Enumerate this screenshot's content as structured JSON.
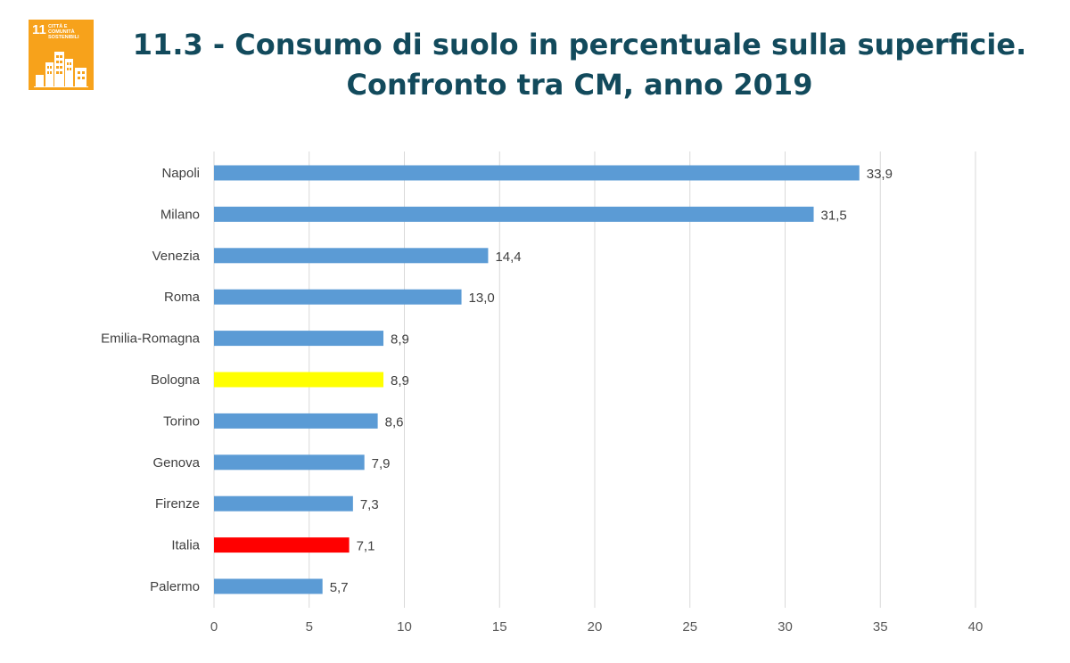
{
  "header": {
    "title_line1": "11.3 - Consumo di suolo in percentuale sulla superficie.",
    "title_line2": "Confronto tra CM, anno 2019",
    "logo": {
      "number": "11",
      "text": "Città e comunità sostenibili",
      "color": "#f7a21b",
      "icon": "city-buildings-icon"
    }
  },
  "chart_data": {
    "type": "bar",
    "orientation": "horizontal",
    "title": "11.3 - Consumo di suolo in percentuale sulla superficie. Confronto tra CM, anno 2019",
    "categories": [
      "Napoli",
      "Milano",
      "Venezia",
      "Roma",
      "Emilia-Romagna",
      "Bologna",
      "Torino",
      "Genova",
      "Firenze",
      "Italia",
      "Palermo"
    ],
    "values": [
      33.9,
      31.5,
      14.4,
      13.0,
      8.9,
      8.9,
      8.6,
      7.9,
      7.3,
      7.1,
      5.7
    ],
    "data_labels": [
      "33,9",
      "31,5",
      "14,4",
      "13,0",
      "8,9",
      "8,9",
      "8,6",
      "7,9",
      "7,3",
      "7,1",
      "5,7"
    ],
    "bar_colors": [
      "#5b9bd5",
      "#5b9bd5",
      "#5b9bd5",
      "#5b9bd5",
      "#5b9bd5",
      "#ffff00",
      "#5b9bd5",
      "#5b9bd5",
      "#5b9bd5",
      "#ff0000",
      "#5b9bd5"
    ],
    "xlim": [
      0,
      40
    ],
    "x_ticks": [
      0,
      5,
      10,
      15,
      20,
      25,
      30,
      35,
      40
    ],
    "xlabel": "",
    "ylabel": "",
    "grid": "vertical",
    "legend": "none"
  }
}
